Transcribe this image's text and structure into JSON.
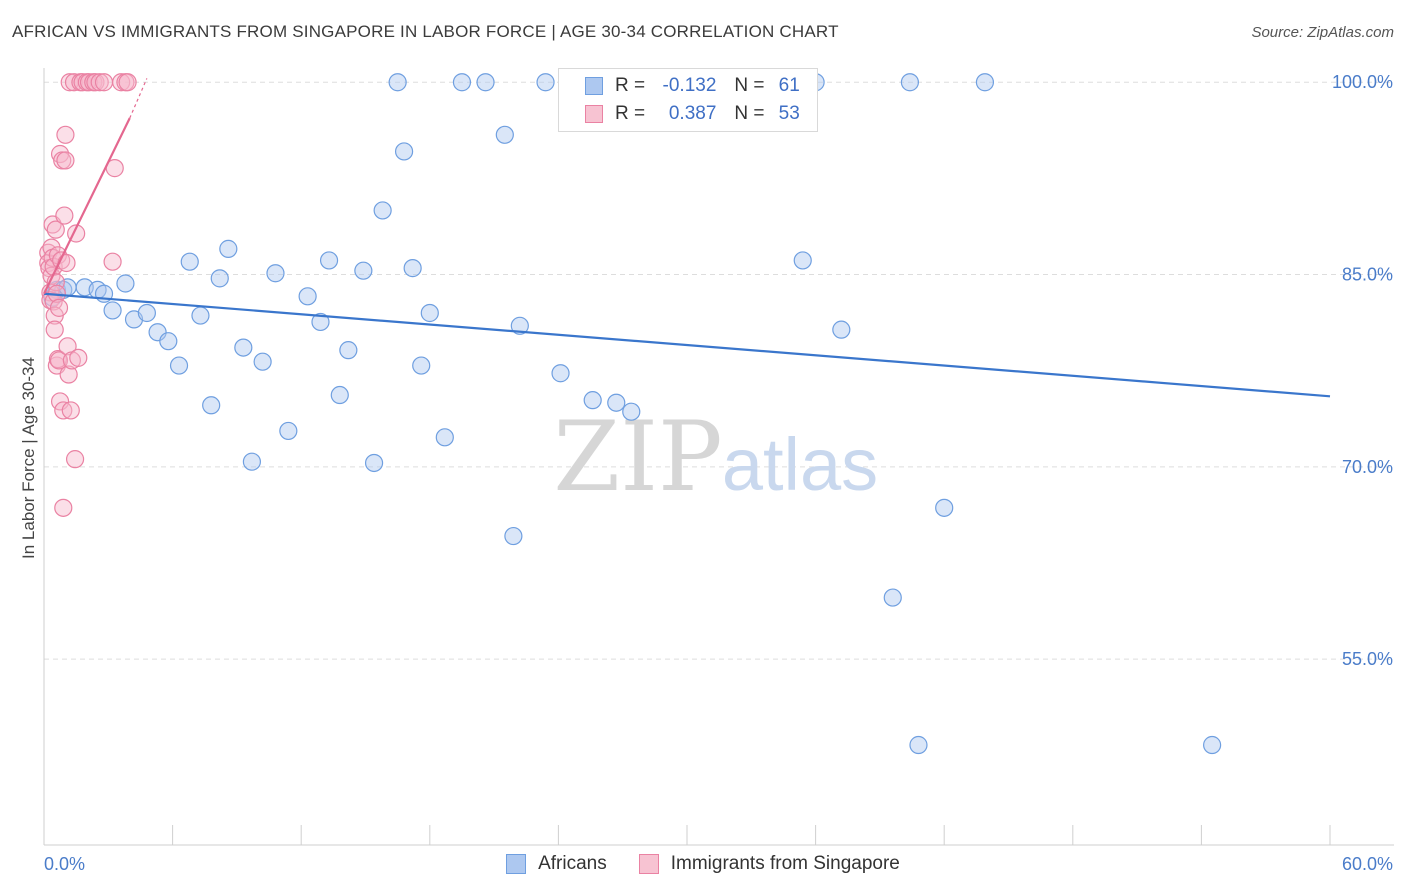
{
  "title": "AFRICAN VS IMMIGRANTS FROM SINGAPORE IN LABOR FORCE | AGE 30-34 CORRELATION CHART",
  "source": "Source: ZipAtlas.com",
  "watermark": {
    "zip": "ZIP",
    "atlas": "atlas"
  },
  "legend": {
    "africans": {
      "r_label": "R =",
      "r_value": "-0.132",
      "n_label": "N =",
      "n_value": "61"
    },
    "singapore": {
      "r_label": "R =",
      "r_value": "0.387",
      "n_label": "N =",
      "n_value": "53"
    }
  },
  "bottom_legend": {
    "africans": "Africans",
    "singapore": "Immigrants from Singapore"
  },
  "colors": {
    "africans_fill": "#adc8f0",
    "africans_stroke": "#6f9fe0",
    "africans_line": "#3a76cc",
    "singapore_fill": "#f7b9cb",
    "singapore_stroke": "#ea82a3",
    "singapore_line": "#e4678f",
    "grid": "#dddddd",
    "tick_text": "#4a7cc9"
  },
  "chart_data": {
    "type": "scatter",
    "title": "AFRICAN VS IMMIGRANTS FROM SINGAPORE IN LABOR FORCE | AGE 30-34 CORRELATION CHART",
    "xlabel": "",
    "ylabel": "In Labor Force | Age 30-34",
    "xlim": [
      0,
      60
    ],
    "ylim": [
      40.5,
      101.5
    ],
    "x_tick_labels": [
      "0.0%",
      "60.0%"
    ],
    "y_ticks": [
      55,
      70,
      85,
      100
    ],
    "y_tick_labels": [
      "55.0%",
      "70.0%",
      "85.0%",
      "100.0%"
    ],
    "grid": true,
    "series": [
      {
        "name": "Africans",
        "r": -0.132,
        "n": 61,
        "trend": {
          "x": [
            0,
            60
          ],
          "y": [
            83.5,
            75.5
          ]
        },
        "points": [
          [
            0.4,
            83.2
          ],
          [
            0.6,
            83.8
          ],
          [
            0.9,
            83.8
          ],
          [
            1.1,
            84.0
          ],
          [
            1.9,
            84.0
          ],
          [
            2.5,
            83.8
          ],
          [
            2.8,
            83.5
          ],
          [
            3.2,
            82.2
          ],
          [
            3.8,
            84.3
          ],
          [
            4.2,
            81.5
          ],
          [
            4.8,
            82.0
          ],
          [
            5.3,
            80.5
          ],
          [
            5.8,
            79.8
          ],
          [
            6.3,
            77.9
          ],
          [
            6.8,
            86.0
          ],
          [
            7.3,
            81.8
          ],
          [
            7.8,
            74.8
          ],
          [
            8.2,
            84.7
          ],
          [
            8.6,
            87.0
          ],
          [
            9.3,
            79.3
          ],
          [
            9.7,
            70.4
          ],
          [
            10.2,
            78.2
          ],
          [
            10.8,
            85.1
          ],
          [
            11.4,
            72.8
          ],
          [
            12.3,
            83.3
          ],
          [
            12.9,
            81.3
          ],
          [
            13.3,
            86.1
          ],
          [
            13.8,
            75.6
          ],
          [
            14.2,
            79.1
          ],
          [
            14.9,
            85.3
          ],
          [
            15.4,
            70.3
          ],
          [
            15.8,
            90.0
          ],
          [
            16.5,
            100.0
          ],
          [
            16.8,
            94.6
          ],
          [
            17.2,
            85.5
          ],
          [
            17.6,
            77.9
          ],
          [
            18.0,
            82.0
          ],
          [
            18.7,
            72.3
          ],
          [
            19.5,
            100.0
          ],
          [
            20.6,
            100.0
          ],
          [
            21.5,
            95.9
          ],
          [
            21.9,
            64.6
          ],
          [
            22.2,
            81.0
          ],
          [
            23.4,
            100.0
          ],
          [
            24.1,
            77.3
          ],
          [
            25.0,
            100.0
          ],
          [
            25.6,
            75.2
          ],
          [
            26.7,
            75.0
          ],
          [
            27.4,
            74.3
          ],
          [
            28.2,
            100.0
          ],
          [
            31.9,
            100.0
          ],
          [
            34.4,
            100.0
          ],
          [
            35.4,
            86.1
          ],
          [
            36.0,
            100.0
          ],
          [
            37.2,
            80.7
          ],
          [
            39.6,
            59.8
          ],
          [
            40.4,
            100.0
          ],
          [
            40.8,
            48.3
          ],
          [
            42.0,
            66.8
          ],
          [
            43.9,
            100.0
          ],
          [
            54.5,
            48.3
          ]
        ]
      },
      {
        "name": "Immigrants from Singapore",
        "r": 0.387,
        "n": 53,
        "trend": {
          "x": [
            0,
            4.0
          ],
          "y": [
            83.5,
            97.2
          ]
        },
        "trend_dashed": {
          "x": [
            4.0,
            4.8
          ],
          "y": [
            97.2,
            100.3
          ]
        },
        "points": [
          [
            0.2,
            86.7
          ],
          [
            0.2,
            85.9
          ],
          [
            0.25,
            85.5
          ],
          [
            0.3,
            83.6
          ],
          [
            0.3,
            83.0
          ],
          [
            0.35,
            87.1
          ],
          [
            0.35,
            84.9
          ],
          [
            0.4,
            88.9
          ],
          [
            0.4,
            86.3
          ],
          [
            0.45,
            85.6
          ],
          [
            0.45,
            82.9
          ],
          [
            0.5,
            81.8
          ],
          [
            0.5,
            80.7
          ],
          [
            0.55,
            88.5
          ],
          [
            0.55,
            84.4
          ],
          [
            0.6,
            83.5
          ],
          [
            0.6,
            77.9
          ],
          [
            0.65,
            86.5
          ],
          [
            0.65,
            78.4
          ],
          [
            0.7,
            82.4
          ],
          [
            0.7,
            78.3
          ],
          [
            0.75,
            94.4
          ],
          [
            0.75,
            75.1
          ],
          [
            0.8,
            86.1
          ],
          [
            0.85,
            93.9
          ],
          [
            0.9,
            66.8
          ],
          [
            0.9,
            74.4
          ],
          [
            0.95,
            89.6
          ],
          [
            1.0,
            95.9
          ],
          [
            1.0,
            93.9
          ],
          [
            1.05,
            85.9
          ],
          [
            1.1,
            79.4
          ],
          [
            1.15,
            77.2
          ],
          [
            1.2,
            100.0
          ],
          [
            1.25,
            74.4
          ],
          [
            1.3,
            78.3
          ],
          [
            1.4,
            100.0
          ],
          [
            1.45,
            70.6
          ],
          [
            1.5,
            88.2
          ],
          [
            1.6,
            78.5
          ],
          [
            1.7,
            100.0
          ],
          [
            1.8,
            100.0
          ],
          [
            2.0,
            100.0
          ],
          [
            2.1,
            100.0
          ],
          [
            2.3,
            100.0
          ],
          [
            2.4,
            100.0
          ],
          [
            2.6,
            100.0
          ],
          [
            2.8,
            100.0
          ],
          [
            3.2,
            86.0
          ],
          [
            3.3,
            93.3
          ],
          [
            3.6,
            100.0
          ],
          [
            3.8,
            100.0
          ],
          [
            3.9,
            100.0
          ]
        ]
      }
    ]
  }
}
